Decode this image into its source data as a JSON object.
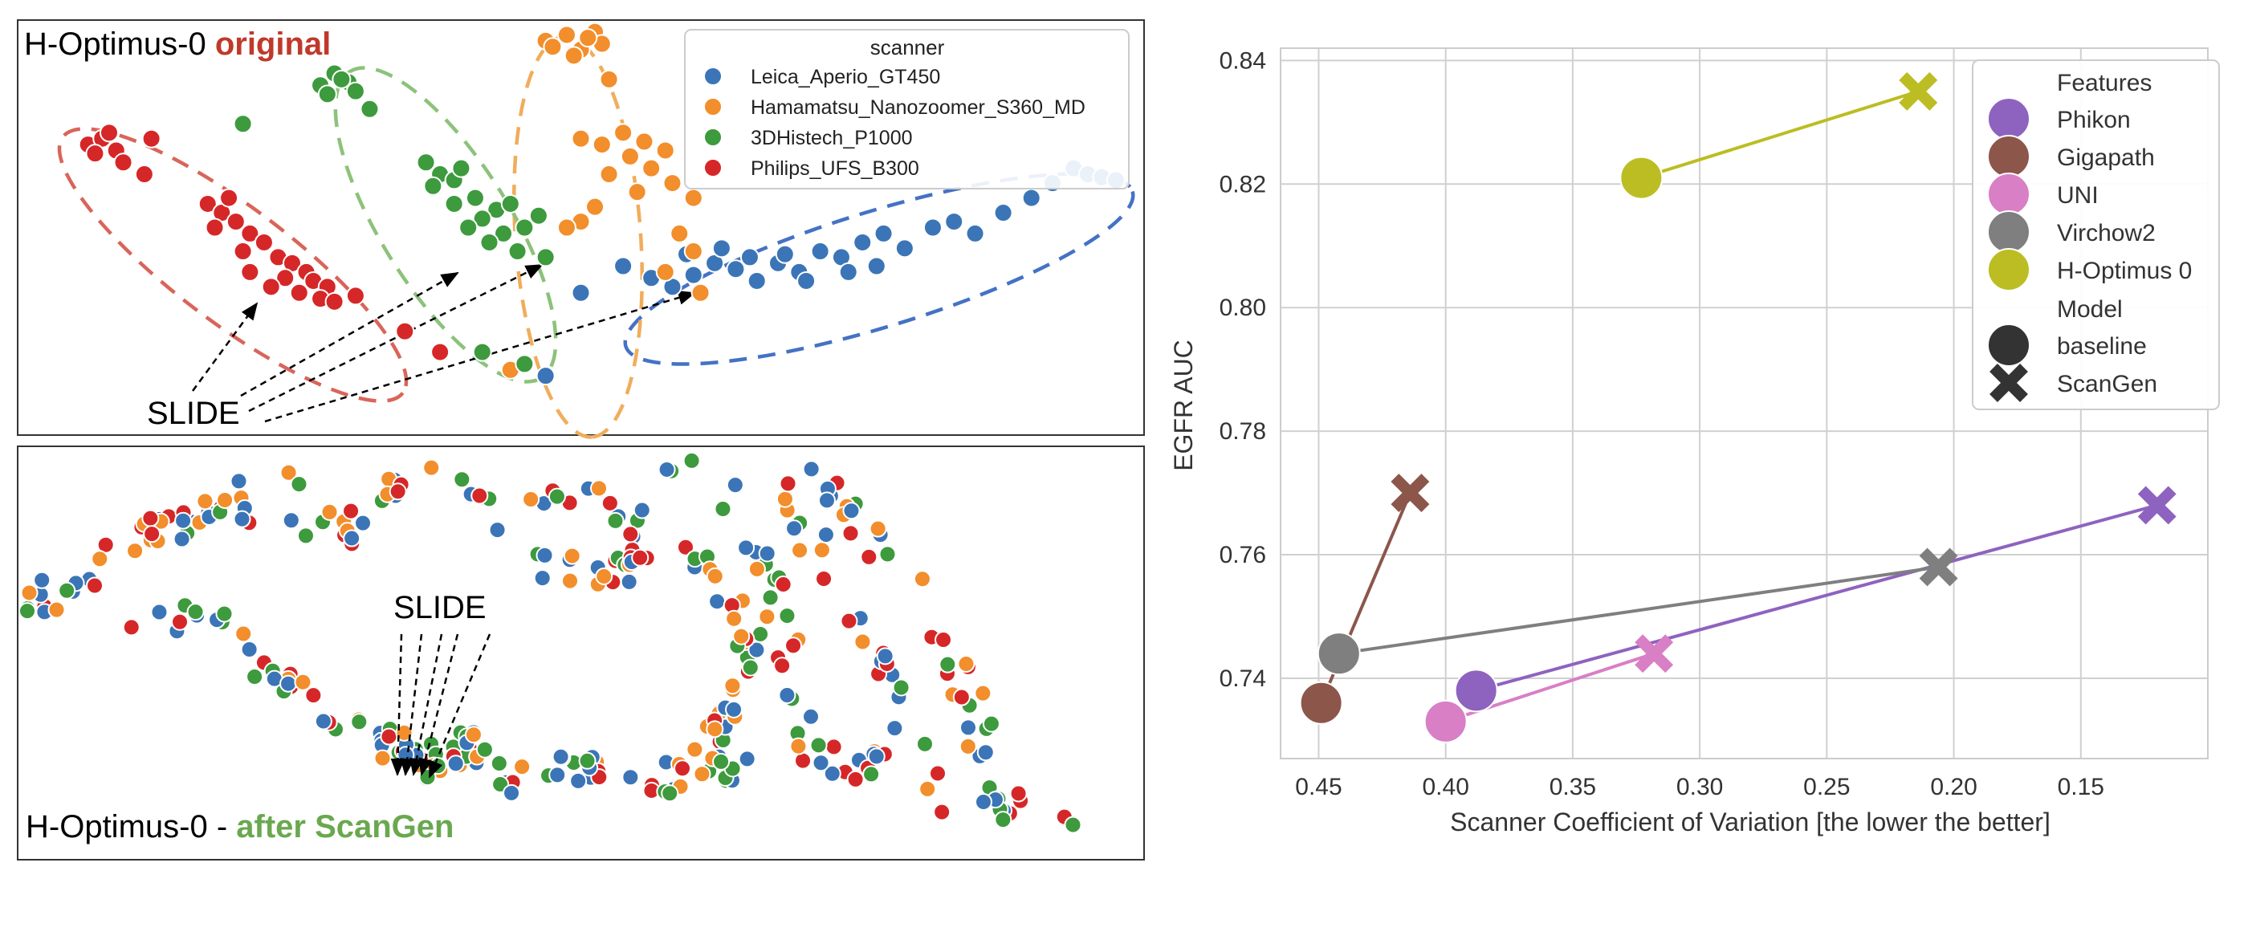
{
  "chart_data": [
    {
      "type": "scatter",
      "panel": "top-left",
      "title_prefix": "H-Optimus-0 ",
      "title_highlight": "original",
      "title_highlight_color": "#c0392b",
      "annotation": "SLIDE",
      "legend": {
        "title": "scanner",
        "placement": "top-right",
        "entries": [
          {
            "label": "Leica_Aperio_GT450",
            "color": "#3b75b7"
          },
          {
            "label": "Hamamatsu_Nanozoomer_S360_MD",
            "color": "#f28e2b"
          },
          {
            "label": "3DHistech_P1000",
            "color": "#3d9a3d"
          },
          {
            "label": "Philips_UFS_B300",
            "color": "#d62728"
          }
        ]
      },
      "clusters": [
        {
          "scanner": "Leica_Aperio_GT450",
          "ellipse_color": "#4472c4",
          "points": [
            [
              0.86,
              0.57
            ],
            [
              0.9,
              0.53
            ],
            [
              0.93,
              0.5
            ],
            [
              0.96,
              0.54
            ],
            [
              0.99,
              0.58
            ],
            [
              1.02,
              0.56
            ],
            [
              1.05,
              0.52
            ],
            [
              1.08,
              0.58
            ],
            [
              1.11,
              0.55
            ],
            [
              1.14,
              0.62
            ],
            [
              1.17,
              0.6
            ],
            [
              1.2,
              0.65
            ],
            [
              1.23,
              0.68
            ],
            [
              1.26,
              0.63
            ],
            [
              1.3,
              0.7
            ],
            [
              1.33,
              0.72
            ],
            [
              1.36,
              0.68
            ],
            [
              1.4,
              0.75
            ],
            [
              1.44,
              0.8
            ],
            [
              1.47,
              0.85
            ],
            [
              1.5,
              0.9
            ],
            [
              1.52,
              0.88
            ],
            [
              1.54,
              0.87
            ],
            [
              1.56,
              0.86
            ],
            [
              0.95,
              0.61
            ],
            [
              1.0,
              0.63
            ],
            [
              1.04,
              0.6
            ],
            [
              1.09,
              0.61
            ],
            [
              1.12,
              0.52
            ],
            [
              1.18,
              0.55
            ],
            [
              1.22,
              0.57
            ],
            [
              0.8,
              0.48
            ],
            [
              0.75,
              0.2
            ]
          ]
        },
        {
          "scanner": "Hamamatsu_Nanozoomer_S360_MD",
          "ellipse_color": "#f0ad5c",
          "points": [
            [
              0.75,
              1.33
            ],
            [
              0.78,
              1.35
            ],
            [
              0.8,
              1.3
            ],
            [
              0.82,
              1.36
            ],
            [
              0.79,
              1.28
            ],
            [
              0.83,
              1.32
            ],
            [
              0.76,
              1.31
            ],
            [
              0.81,
              1.34
            ],
            [
              0.84,
              1.2
            ],
            [
              0.8,
              1.0
            ],
            [
              0.83,
              0.98
            ],
            [
              0.86,
              1.02
            ],
            [
              0.89,
              0.99
            ],
            [
              0.92,
              0.96
            ],
            [
              0.87,
              0.94
            ],
            [
              0.9,
              0.9
            ],
            [
              0.93,
              0.85
            ],
            [
              0.96,
              0.8
            ],
            [
              0.88,
              0.82
            ],
            [
              0.84,
              0.88
            ],
            [
              0.82,
              0.77
            ],
            [
              0.8,
              0.72
            ],
            [
              0.78,
              0.7
            ],
            [
              0.94,
              0.68
            ],
            [
              0.96,
              0.62
            ],
            [
              0.92,
              0.55
            ],
            [
              0.97,
              0.48
            ],
            [
              0.7,
              0.22
            ]
          ]
        },
        {
          "scanner": "3DHistech_P1000",
          "ellipse_color": "#8cc27a",
          "points": [
            [
              0.43,
              1.18
            ],
            [
              0.45,
              1.22
            ],
            [
              0.47,
              1.19
            ],
            [
              0.44,
              1.15
            ],
            [
              0.48,
              1.16
            ],
            [
              0.46,
              1.2
            ],
            [
              0.5,
              1.1
            ],
            [
              0.32,
              1.05
            ],
            [
              0.58,
              0.92
            ],
            [
              0.6,
              0.88
            ],
            [
              0.62,
              0.86
            ],
            [
              0.59,
              0.84
            ],
            [
              0.63,
              0.9
            ],
            [
              0.65,
              0.8
            ],
            [
              0.68,
              0.76
            ],
            [
              0.66,
              0.73
            ],
            [
              0.7,
              0.78
            ],
            [
              0.72,
              0.7
            ],
            [
              0.69,
              0.68
            ],
            [
              0.74,
              0.74
            ],
            [
              0.64,
              0.7
            ],
            [
              0.67,
              0.65
            ],
            [
              0.71,
              0.62
            ],
            [
              0.75,
              0.6
            ],
            [
              0.62,
              0.78
            ],
            [
              0.66,
              0.28
            ],
            [
              0.72,
              0.24
            ]
          ]
        },
        {
          "scanner": "Philips_UFS_B300",
          "ellipse_color": "#d9655a",
          "points": [
            [
              0.1,
              0.98
            ],
            [
              0.12,
              1.0
            ],
            [
              0.14,
              0.96
            ],
            [
              0.13,
              1.02
            ],
            [
              0.11,
              0.95
            ],
            [
              0.15,
              0.92
            ],
            [
              0.19,
              1.0
            ],
            [
              0.18,
              0.88
            ],
            [
              0.27,
              0.78
            ],
            [
              0.29,
              0.75
            ],
            [
              0.31,
              0.72
            ],
            [
              0.28,
              0.7
            ],
            [
              0.33,
              0.68
            ],
            [
              0.35,
              0.65
            ],
            [
              0.32,
              0.62
            ],
            [
              0.37,
              0.6
            ],
            [
              0.39,
              0.58
            ],
            [
              0.41,
              0.55
            ],
            [
              0.38,
              0.53
            ],
            [
              0.42,
              0.52
            ],
            [
              0.44,
              0.5
            ],
            [
              0.36,
              0.5
            ],
            [
              0.4,
              0.48
            ],
            [
              0.43,
              0.46
            ],
            [
              0.45,
              0.45
            ],
            [
              0.33,
              0.55
            ],
            [
              0.48,
              0.47
            ],
            [
              0.55,
              0.35
            ],
            [
              0.6,
              0.28
            ],
            [
              0.3,
              0.8
            ]
          ]
        }
      ]
    },
    {
      "type": "scatter",
      "panel": "bottom-left",
      "title_prefix": "H-Optimus-0 - ",
      "title_highlight": "after ScanGen",
      "title_highlight_color": "#6aa84f",
      "annotation": "SLIDE",
      "point_count": 360,
      "colors": [
        "#3b75b7",
        "#f28e2b",
        "#3d9a3d",
        "#d62728"
      ]
    },
    {
      "type": "line",
      "panel": "right",
      "xlabel": "Scanner Coefficient of Variation [the lower the better]",
      "ylabel": "EGFR AUC",
      "xlim": [
        0.465,
        0.1
      ],
      "ylim": [
        0.727,
        0.842
      ],
      "xticks": [
        0.45,
        0.4,
        0.35,
        0.3,
        0.25,
        0.2,
        0.15
      ],
      "xtick_labels": [
        "0.45",
        "0.40",
        "0.35",
        "0.30",
        "0.25",
        "0.20",
        "0.15"
      ],
      "yticks": [
        0.74,
        0.76,
        0.78,
        0.8,
        0.82,
        0.84
      ],
      "ytick_labels": [
        "0.74",
        "0.76",
        "0.78",
        "0.80",
        "0.82",
        "0.84"
      ],
      "grid": true,
      "legend": {
        "placement": "top-right",
        "features_title": "Features",
        "model_title": "Model",
        "model_entries": [
          {
            "label": "baseline",
            "marker": "circle"
          },
          {
            "label": "ScanGen",
            "marker": "x"
          }
        ]
      },
      "series": [
        {
          "name": "Phikon",
          "color": "#8e63bf",
          "baseline": {
            "x": 0.388,
            "y": 0.738
          },
          "scangen": {
            "x": 0.12,
            "y": 0.768
          }
        },
        {
          "name": "Gigapath",
          "color": "#8c564b",
          "baseline": {
            "x": 0.449,
            "y": 0.736
          },
          "scangen": {
            "x": 0.414,
            "y": 0.77
          }
        },
        {
          "name": "UNI",
          "color": "#d87fc6",
          "baseline": {
            "x": 0.4,
            "y": 0.733
          },
          "scangen": {
            "x": 0.318,
            "y": 0.744
          }
        },
        {
          "name": "Virchow2",
          "color": "#7f7f7f",
          "baseline": {
            "x": 0.442,
            "y": 0.744
          },
          "scangen": {
            "x": 0.206,
            "y": 0.758
          }
        },
        {
          "name": "H-Optimus 0",
          "color": "#bcbd22",
          "baseline": {
            "x": 0.323,
            "y": 0.821
          },
          "scangen": {
            "x": 0.214,
            "y": 0.835
          }
        }
      ]
    }
  ]
}
